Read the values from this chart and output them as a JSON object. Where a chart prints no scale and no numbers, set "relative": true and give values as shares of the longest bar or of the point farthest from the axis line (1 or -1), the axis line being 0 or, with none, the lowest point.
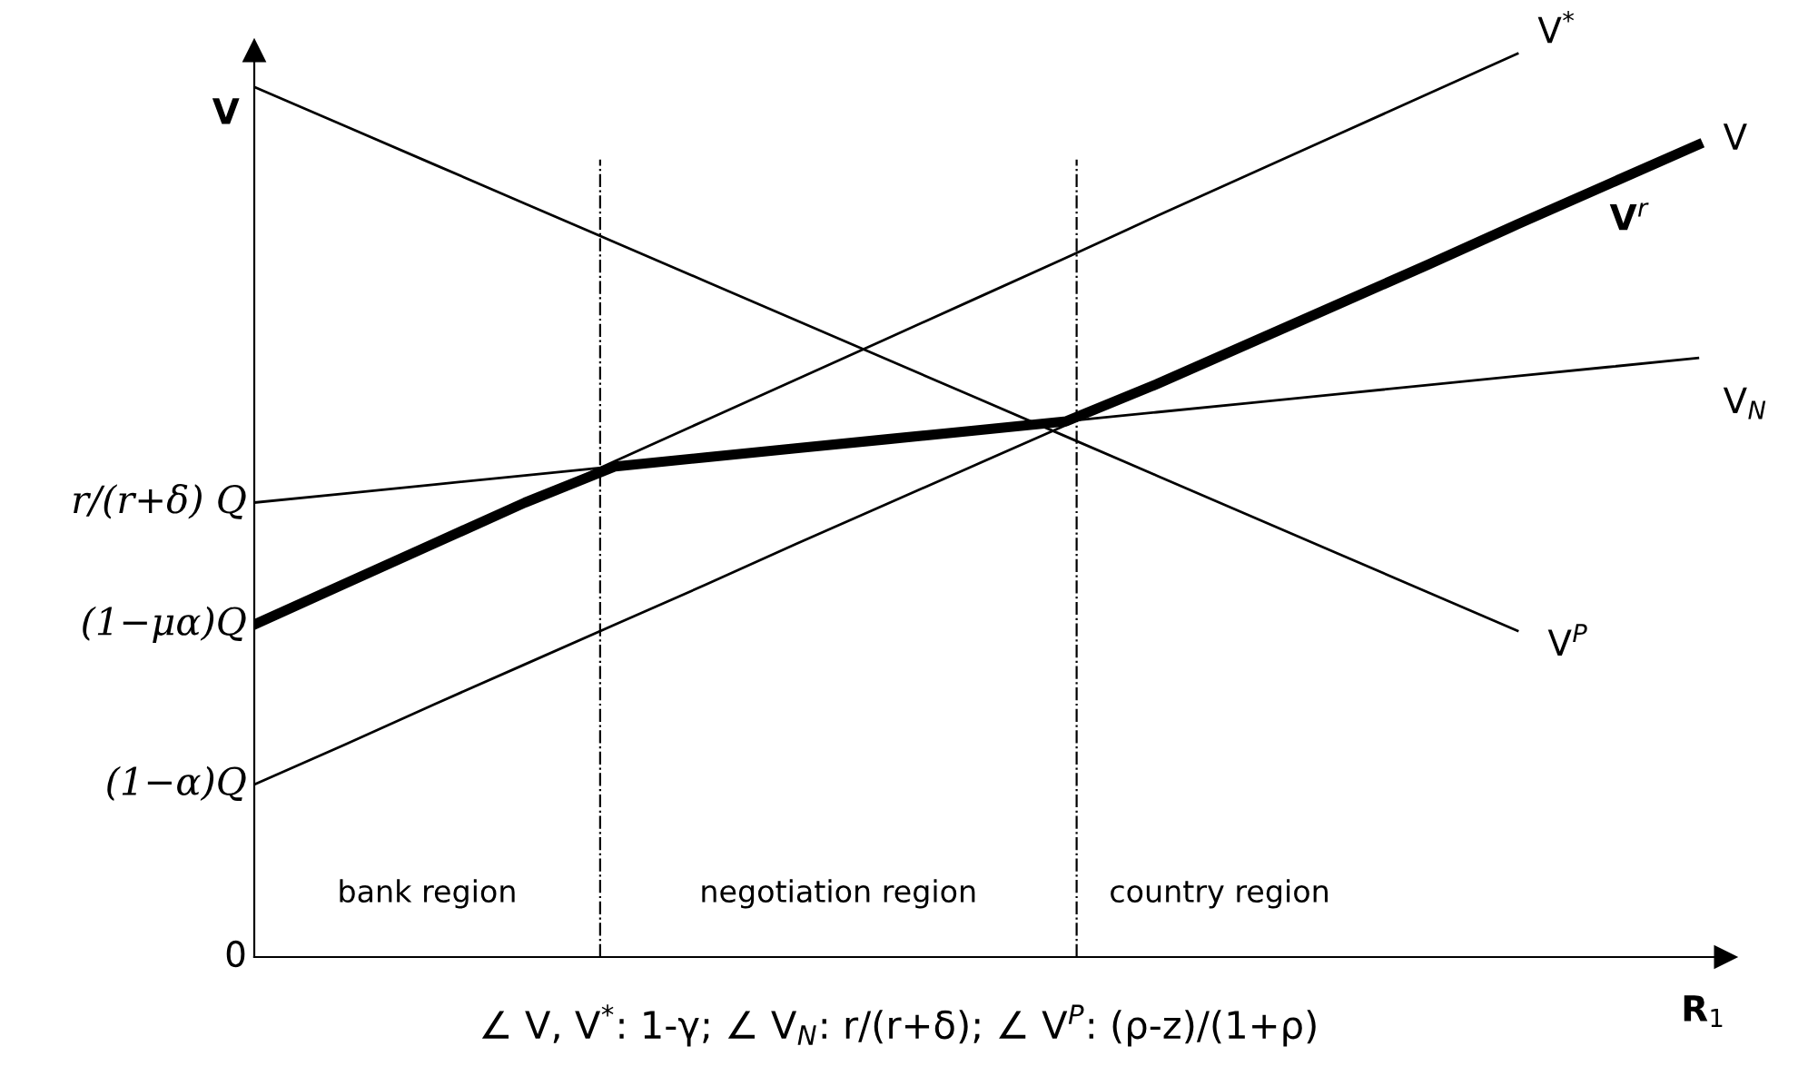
{
  "chart_data": {
    "type": "line",
    "relative": true,
    "legend": false,
    "grid": false,
    "marker": "none",
    "line_style": "solid",
    "ylabel": "V",
    "xlabel": "R$_{1}$",
    "categories": [
      null,
      null,
      null,
      null,
      null,
      null,
      null,
      null,
      null,
      null,
      null,
      null,
      null,
      null,
      null,
      null,
      null
    ],
    "series": [
      {
        "name": "V$^{P}$",
        "color": "#000000",
        "values": [
          0.963,
          0.92,
          0.877,
          0.834,
          0.791,
          0.748,
          0.705,
          0.662,
          0.619,
          0.576,
          0.533,
          0.49,
          0.447,
          0.404,
          0.361,
          null,
          null
        ]
      },
      {
        "name": "V$^{*}$",
        "color": "#000000",
        "values": [
          0.368,
          0.413,
          0.458,
          0.503,
          0.549,
          0.594,
          0.639,
          0.684,
          0.729,
          0.774,
          0.82,
          0.865,
          0.91,
          0.955,
          1.0,
          null,
          null
        ]
      },
      {
        "name": "V",
        "color": "#000000",
        "values": [
          0.191,
          0.235,
          0.28,
          0.324,
          0.368,
          0.412,
          0.457,
          0.501,
          0.545,
          0.589,
          0.634,
          0.678,
          0.722,
          0.766,
          0.811,
          0.855,
          0.899
        ]
      },
      {
        "name": "V$_{N}$",
        "color": "#000000",
        "values": [
          0.503,
          0.513,
          0.523,
          0.533,
          0.543,
          0.553,
          0.563,
          0.573,
          0.583,
          0.593,
          0.603,
          0.613,
          0.623,
          0.633,
          0.643,
          0.653,
          0.663
        ]
      },
      {
        "name": "V$^{r}$",
        "color": "#000000",
        "values": [
          0.368,
          0.413,
          0.458,
          0.503,
          0.543,
          0.553,
          0.563,
          0.573,
          0.583,
          0.593,
          0.634,
          0.678,
          0.722,
          0.766,
          0.811,
          0.855,
          0.899
        ]
      }
    ],
    "annotations": [
      "r/(r+δ) Q",
      "(1−μα)Q",
      "(1−α)Q",
      "0",
      "bank region",
      "negotiation region",
      "country region",
      "∠ V, V$^{*}$: 1-γ; ∠ V$_{N}$: r/(r+δ); ∠ V$^{P}$: (ρ-z)/(1+ρ)"
    ]
  }
}
